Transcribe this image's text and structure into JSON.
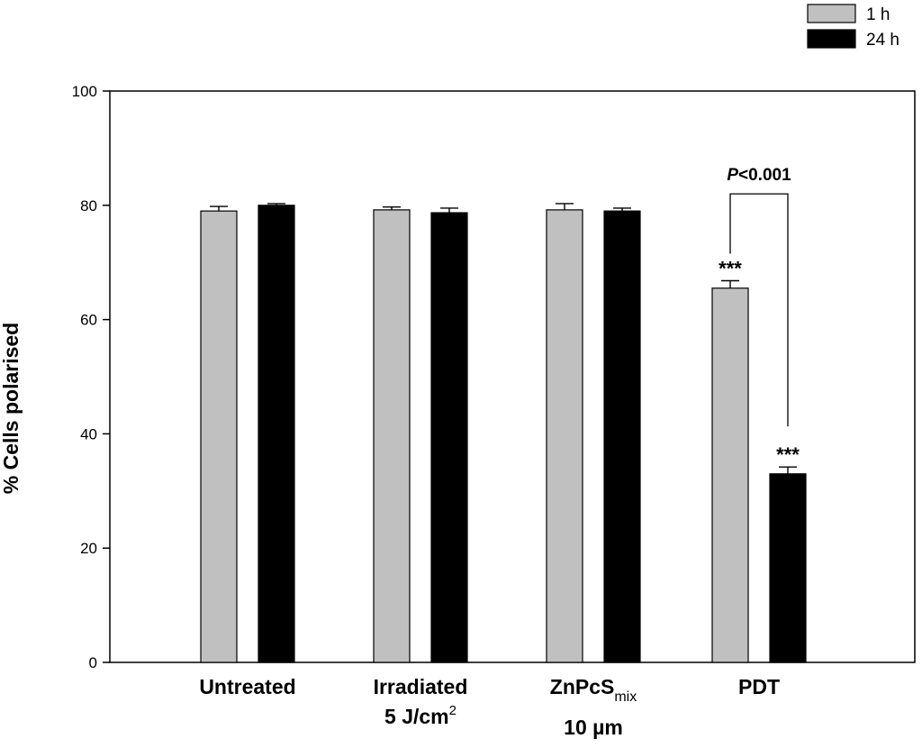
{
  "chart_data": {
    "type": "bar",
    "title": "",
    "xlabel": "",
    "ylabel": "% Cells polarised",
    "ylim": [
      0,
      100
    ],
    "yticks": [
      0,
      20,
      40,
      60,
      80,
      100
    ],
    "grid": false,
    "legend_position": "top-right",
    "categories": [
      {
        "main": "Untreated",
        "line2": "",
        "line2_sup": "",
        "sub": "",
        "line3": ""
      },
      {
        "main": "Irradiated",
        "line2": "5 J/cm",
        "line2_sup": "2",
        "sub": "",
        "line3": ""
      },
      {
        "main": "ZnPcS",
        "line2": "",
        "line2_sup": "",
        "sub": "mix",
        "line3": "10 µm"
      },
      {
        "main": "PDT",
        "line2": "",
        "line2_sup": "",
        "sub": "",
        "line3": ""
      }
    ],
    "series": [
      {
        "name": "1 h",
        "color": "#c0c0c0",
        "values": [
          79,
          79.2,
          79.2,
          65.5
        ],
        "errors": [
          0.8,
          0.5,
          1.1,
          1.3
        ]
      },
      {
        "name": "24 h",
        "color": "#000000",
        "values": [
          80,
          78.7,
          79,
          33
        ],
        "errors": [
          0.3,
          0.8,
          0.5,
          1.2
        ]
      }
    ],
    "annotations": {
      "significance": [
        {
          "category": 3,
          "series": 0,
          "label": "***"
        },
        {
          "category": 3,
          "series": 1,
          "label": "***"
        }
      ],
      "comparison": {
        "category": 3,
        "label_italic": "P",
        "label_rest": "<0.001",
        "bracket_value": 82
      }
    }
  }
}
